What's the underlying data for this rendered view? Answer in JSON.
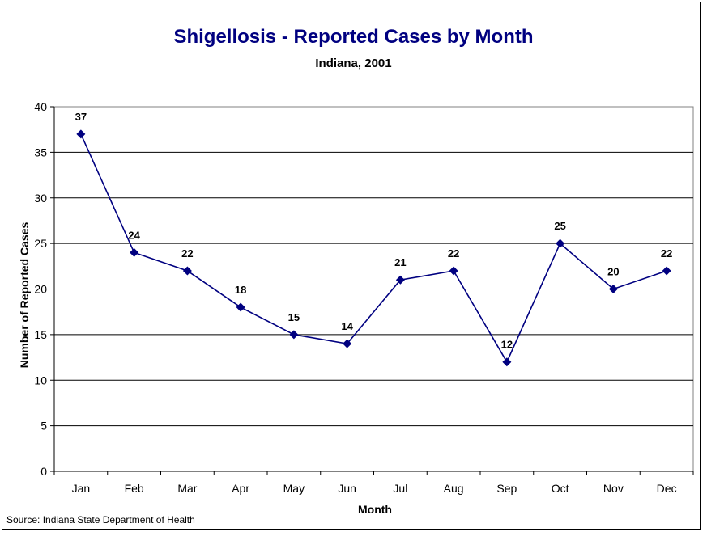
{
  "chart_data": {
    "type": "line",
    "title": "Shigellosis - Reported Cases by Month",
    "subtitle": "Indiana, 2001",
    "xlabel": "Month",
    "ylabel": "Number of Reported Cases",
    "categories": [
      "Jan",
      "Feb",
      "Mar",
      "Apr",
      "May",
      "Jun",
      "Jul",
      "Aug",
      "Sep",
      "Oct",
      "Nov",
      "Dec"
    ],
    "series": [
      {
        "name": "Reported Cases",
        "values": [
          37,
          24,
          22,
          18,
          15,
          14,
          21,
          22,
          12,
          25,
          20,
          22
        ],
        "color": "#000080",
        "marker": "diamond"
      }
    ],
    "ylim": [
      0,
      40
    ],
    "yticks": [
      0,
      5,
      10,
      15,
      20,
      25,
      30,
      35,
      40
    ],
    "grid": true,
    "data_labels": true,
    "source": "Source: Indiana State Department of Health"
  }
}
